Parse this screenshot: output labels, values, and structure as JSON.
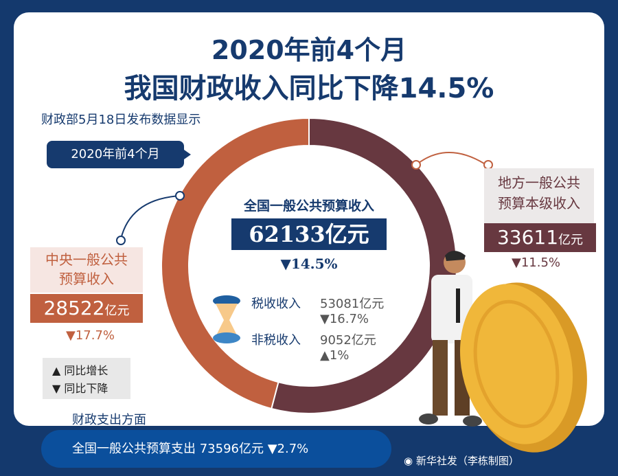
{
  "title": {
    "line1": "2020年前4个月",
    "line2": "我国财政收入同比下降14.5%"
  },
  "subtitle": "财政部5月18日发布数据显示",
  "period_tag": "2020年前4个月",
  "center": {
    "label": "全国一般公共预算收入",
    "value": "62133亿元",
    "change": "▼14.5%",
    "tax": {
      "label": "税收收入",
      "value": "53081亿元",
      "change": "▼16.7%"
    },
    "nontax": {
      "label": "非税收入",
      "value": "9052亿元",
      "change": "▲1%"
    }
  },
  "central": {
    "label_line1": "中央一般公共",
    "label_line2": "预算收入",
    "value": "28522",
    "unit": "亿元",
    "change": "▼17.7%"
  },
  "local": {
    "label_line1": "地方一般公共",
    "label_line2": "预算本级收入",
    "value": "33611",
    "unit": "亿元",
    "change": "▼11.5%"
  },
  "legend": {
    "up": "▲ 同比增长",
    "down": "▼ 同比下降"
  },
  "expenditure": {
    "heading": "财政支出方面",
    "text": "全国一般公共预算支出  73596亿元 ▼2.7%"
  },
  "credit": "新华社发（李栋制图）",
  "colors": {
    "navy": "#163a6e",
    "central": "#c0603f",
    "local": "#673840",
    "coin": "#f0b73a"
  },
  "chart_data": {
    "type": "pie",
    "donut": true,
    "categories": [
      "地方一般公共预算本级收入",
      "中央一般公共预算收入"
    ],
    "values": [
      33611,
      28522
    ],
    "colors": [
      "#673840",
      "#c0603f"
    ]
  }
}
